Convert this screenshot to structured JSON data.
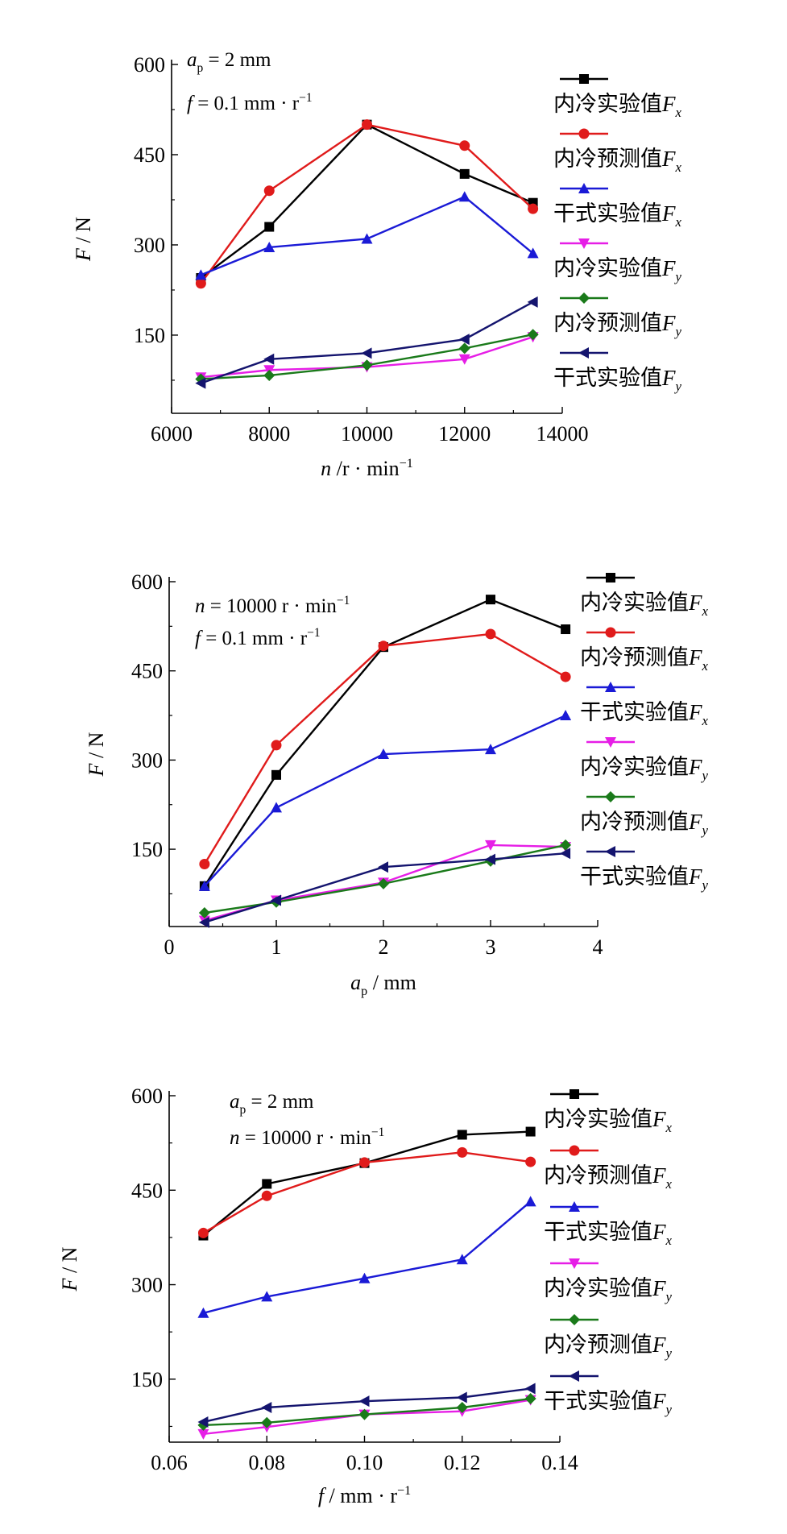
{
  "chart_data": [
    {
      "type": "line",
      "annotations": [
        [
          {
            "t": "a",
            "i": true
          },
          {
            "t": "p",
            "sub": true
          },
          {
            "t": " = 2 mm"
          }
        ],
        [
          {
            "t": "f",
            "i": true
          },
          {
            "t": " = 0.1 mm · r"
          },
          {
            "t": "−1",
            "sup": true
          }
        ]
      ],
      "xlabel": [
        {
          "t": "n",
          "i": true
        },
        {
          "t": " /r · min"
        },
        {
          "t": "−1",
          "sup": true
        }
      ],
      "ylabel": [
        {
          "t": "F",
          "i": true
        },
        {
          "t": " / N"
        }
      ],
      "xlim": [
        6000,
        14000
      ],
      "ylim": [
        20,
        600
      ],
      "xticks": [
        6000,
        8000,
        10000,
        12000,
        14000
      ],
      "xtick_labels": [
        "6000",
        "8000",
        "10000",
        "12000",
        "14000"
      ],
      "yticks": [
        150,
        300,
        450,
        600
      ],
      "ytick_labels": [
        "150",
        "300",
        "450",
        "600"
      ],
      "x": [
        6600,
        8000,
        10000,
        12000,
        13400
      ],
      "series": [
        {
          "name": "内冷实验值Fx",
          "label": "内冷实验值",
          "sub": "x",
          "color": "#000000",
          "marker": "square",
          "values": [
            245,
            330,
            500,
            418,
            370
          ]
        },
        {
          "name": "内冷预测值Fx",
          "label": "内冷预测值",
          "sub": "x",
          "color": "#e01b1b",
          "marker": "circle",
          "values": [
            236,
            390,
            500,
            465,
            360
          ]
        },
        {
          "name": "干式实验值Fx",
          "label": "干式实验值",
          "sub": "x",
          "color": "#1a1ad6",
          "marker": "triangle-up",
          "values": [
            250,
            296,
            310,
            380,
            286
          ]
        },
        {
          "name": "内冷实验值Fy",
          "label": "内冷实验值",
          "sub": "y",
          "color": "#e61ee6",
          "marker": "triangle-down",
          "values": [
            80,
            92,
            97,
            110,
            147
          ]
        },
        {
          "name": "内冷预测值Fy",
          "label": "内冷预测值",
          "sub": "y",
          "color": "#1a7a1a",
          "marker": "diamond",
          "values": [
            77,
            83,
            100,
            128,
            151
          ]
        },
        {
          "name": "干式实验值Fy",
          "label": "干式实验值",
          "sub": "y",
          "color": "#14146e",
          "marker": "triangle-left",
          "values": [
            70,
            110,
            120,
            143,
            205
          ]
        }
      ]
    },
    {
      "type": "line",
      "annotations": [
        [
          {
            "t": "n",
            "i": true
          },
          {
            "t": " = 10000 r · min"
          },
          {
            "t": "−1",
            "sup": true
          }
        ],
        [
          {
            "t": "f",
            "i": true
          },
          {
            "t": " = 0.1 mm · r"
          },
          {
            "t": "−1",
            "sup": true
          }
        ]
      ],
      "xlabel": [
        {
          "t": "a",
          "i": true
        },
        {
          "t": "p",
          "sub": true
        },
        {
          "t": " / mm"
        }
      ],
      "ylabel": [
        {
          "t": "F",
          "i": true
        },
        {
          "t": " / N"
        }
      ],
      "xlim": [
        0,
        4
      ],
      "ylim": [
        20,
        600
      ],
      "xticks": [
        0,
        1,
        2,
        3,
        4
      ],
      "xtick_labels": [
        "0",
        "1",
        "2",
        "3",
        "4"
      ],
      "yticks": [
        150,
        300,
        450,
        600
      ],
      "ytick_labels": [
        "150",
        "300",
        "450",
        "600"
      ],
      "x": [
        0.33,
        1.0,
        2.0,
        3.0,
        3.7
      ],
      "series": [
        {
          "name": "内冷实验值Fx",
          "label": "内冷实验值",
          "sub": "x",
          "color": "#000000",
          "marker": "square",
          "values": [
            88,
            275,
            490,
            570,
            520
          ]
        },
        {
          "name": "内冷预测值Fx",
          "label": "内冷预测值",
          "sub": "x",
          "color": "#e01b1b",
          "marker": "circle",
          "values": [
            125,
            325,
            492,
            512,
            440
          ]
        },
        {
          "name": "干式实验值Fx",
          "label": "干式实验值",
          "sub": "x",
          "color": "#1a1ad6",
          "marker": "triangle-up",
          "values": [
            88,
            220,
            310,
            318,
            375
          ]
        },
        {
          "name": "内冷实验值Fy",
          "label": "内冷实验值",
          "sub": "y",
          "color": "#e61ee6",
          "marker": "triangle-down",
          "values": [
            30,
            64,
            94,
            157,
            154
          ]
        },
        {
          "name": "内冷预测值Fy",
          "label": "内冷预测值",
          "sub": "y",
          "color": "#1a7a1a",
          "marker": "diamond",
          "values": [
            43,
            61,
            92,
            130,
            157
          ]
        },
        {
          "name": "干式实验值Fy",
          "label": "干式实验值",
          "sub": "y",
          "color": "#14146e",
          "marker": "triangle-left",
          "values": [
            27,
            64,
            120,
            133,
            143
          ]
        }
      ]
    },
    {
      "type": "line",
      "annotations": [
        [
          {
            "t": "a",
            "i": true
          },
          {
            "t": "p",
            "sub": true
          },
          {
            "t": " = 2 mm"
          }
        ],
        [
          {
            "t": "n",
            "i": true
          },
          {
            "t": " = 10000 r · min"
          },
          {
            "t": "−1",
            "sup": true
          }
        ]
      ],
      "xlabel": [
        {
          "t": "f",
          "i": true
        },
        {
          "t": " / mm · r"
        },
        {
          "t": "−1",
          "sup": true
        }
      ],
      "ylabel": [
        {
          "t": "F",
          "i": true
        },
        {
          "t": " / N"
        }
      ],
      "xlim": [
        0.06,
        0.14
      ],
      "ylim": [
        50,
        600
      ],
      "xticks": [
        0.06,
        0.08,
        0.1,
        0.12,
        0.14
      ],
      "xtick_labels": [
        "0.06",
        "0.08",
        "0.10",
        "0.12",
        "0.14"
      ],
      "yticks": [
        150,
        300,
        450,
        600
      ],
      "ytick_labels": [
        "150",
        "300",
        "450",
        "600"
      ],
      "x": [
        0.067,
        0.08,
        0.1,
        0.12,
        0.134
      ],
      "series": [
        {
          "name": "内冷实验值Fx",
          "label": "内冷实验值",
          "sub": "x",
          "color": "#000000",
          "marker": "square",
          "values": [
            378,
            460,
            493,
            538,
            543
          ]
        },
        {
          "name": "内冷预测值Fx",
          "label": "内冷预测值",
          "sub": "x",
          "color": "#e01b1b",
          "marker": "circle",
          "values": [
            382,
            441,
            494,
            510,
            495
          ]
        },
        {
          "name": "干式实验值Fx",
          "label": "干式实验值",
          "sub": "x",
          "color": "#1a1ad6",
          "marker": "triangle-up",
          "values": [
            255,
            281,
            310,
            340,
            432
          ]
        },
        {
          "name": "内冷实验值Fy",
          "label": "内冷实验值",
          "sub": "y",
          "color": "#e61ee6",
          "marker": "triangle-down",
          "values": [
            63,
            74,
            94,
            99,
            117
          ]
        },
        {
          "name": "内冷预测值Fy",
          "label": "内冷预测值",
          "sub": "y",
          "color": "#1a7a1a",
          "marker": "diamond",
          "values": [
            77,
            81,
            94,
            105,
            119
          ]
        },
        {
          "name": "干式实验值Fy",
          "label": "干式实验值",
          "sub": "y",
          "color": "#14146e",
          "marker": "triangle-left",
          "values": [
            82,
            105,
            115,
            121,
            135
          ]
        }
      ]
    }
  ]
}
